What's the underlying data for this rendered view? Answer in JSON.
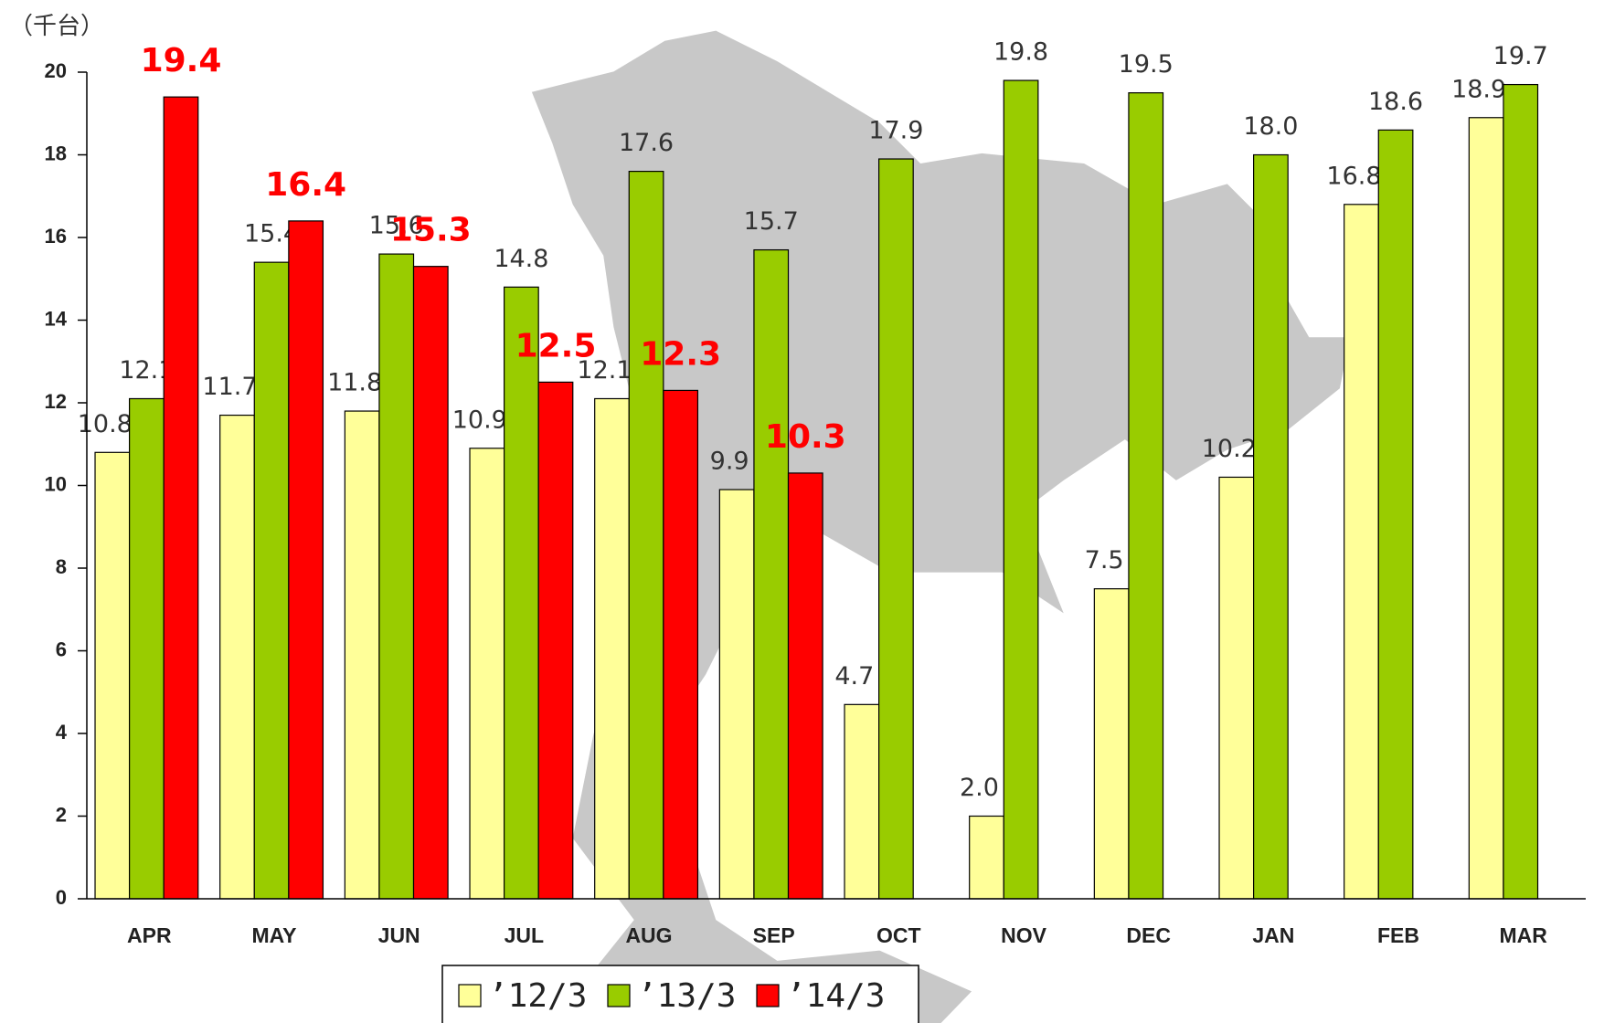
{
  "chart_data": {
    "type": "bar",
    "unit_label": "（千台）",
    "categories": [
      "APR",
      "MAY",
      "JUN",
      "JUL",
      "AUG",
      "SEP",
      "OCT",
      "NOV",
      "DEC",
      "JAN",
      "FEB",
      "MAR"
    ],
    "series": [
      {
        "name": "’12/3",
        "color": "#ffff99",
        "label_color": "#333333",
        "values": [
          10.8,
          11.7,
          11.8,
          10.9,
          12.1,
          9.9,
          4.7,
          2.0,
          7.5,
          10.2,
          16.8,
          18.9
        ],
        "value_labels": [
          "10.8",
          "11.7",
          "11.8",
          "10.9",
          "12.1",
          "9.9",
          "4.7",
          "2.0",
          "7.5",
          "10.2",
          "16.8",
          "18.9"
        ]
      },
      {
        "name": "’13/3",
        "color": "#99cc00",
        "label_color": "#333333",
        "values": [
          12.1,
          15.4,
          15.6,
          14.8,
          17.6,
          15.7,
          17.9,
          19.8,
          19.5,
          18.0,
          18.6,
          19.7
        ],
        "value_labels": [
          "12.1",
          "15.4",
          "15.6",
          "14.8",
          "17.6",
          "15.7",
          "17.9",
          "19.8",
          "19.5",
          "18.0",
          "18.6",
          "19.7"
        ]
      },
      {
        "name": "’14/3",
        "color": "#ff0000",
        "label_color": "#ff0000",
        "values": [
          19.4,
          16.4,
          15.3,
          12.5,
          12.3,
          10.3,
          null,
          null,
          null,
          null,
          null,
          null
        ],
        "value_labels": [
          "19.4",
          "16.4",
          "15.3",
          "12.5",
          "12.3",
          "10.3",
          null,
          null,
          null,
          null,
          null,
          null
        ]
      }
    ],
    "ylim": [
      0,
      20
    ],
    "yticks": [
      0,
      2,
      4,
      6,
      8,
      10,
      12,
      14,
      16,
      18,
      20
    ],
    "legend": "bottom"
  }
}
